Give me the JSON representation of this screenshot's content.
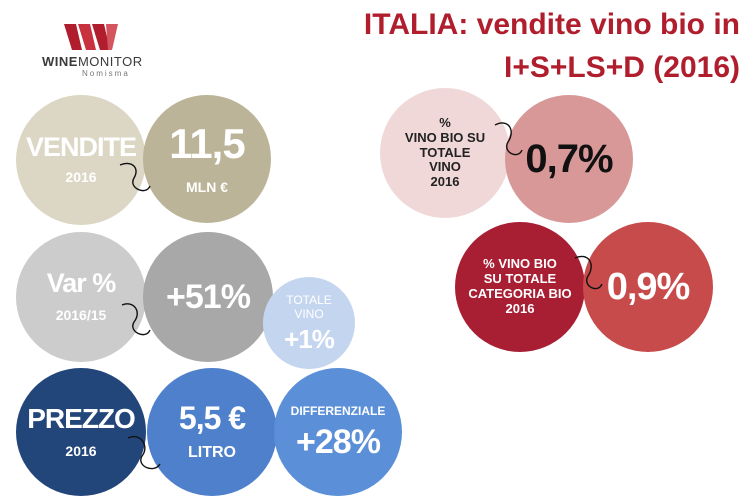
{
  "logo": {
    "brand_bold": "WINE",
    "brand_rest": "MONITOR",
    "sub": "Nomisma"
  },
  "title": {
    "line1": "ITALIA: vendite vino bio in",
    "line2": "I+S+LS+D (2016)"
  },
  "left": {
    "vendite": {
      "label": "VENDITE",
      "year": "2016",
      "value": "11,5",
      "unit": "MLN €"
    },
    "var": {
      "label": "Var %",
      "period": "2016/15",
      "value": "+51%",
      "total_label": "TOTALE VINO",
      "total_value": "+1%"
    },
    "prezzo": {
      "label": "PREZZO",
      "year": "2016",
      "value": "5,5 €",
      "unit": "LITRO",
      "diff_label": "DIFFERENZIALE",
      "diff_value": "+28%"
    }
  },
  "right": {
    "share1": {
      "pct": "%",
      "label1": "VINO BIO SU",
      "label2": "TOTALE",
      "label3": "VINO",
      "year": "2016",
      "value": "0,7%"
    },
    "share2": {
      "label1": "% VINO BIO",
      "label2": "SU TOTALE",
      "label3": "CATEGORIA BIO",
      "year": "2016",
      "value": "0,9%"
    }
  },
  "colors": {
    "beige_light": "#dcd7c5",
    "beige_dark": "#bcb498",
    "grey_light": "#cccccc",
    "grey_dark": "#a8a8a8",
    "blue_pale": "#c4d6ef",
    "navy": "#22467a",
    "blue_mid": "#4e80cc",
    "blue_light": "#5b8fd8",
    "pink_light": "#f0d8d8",
    "rose": "#d99898",
    "crimson": "#a81f34",
    "red": "#c84b4b",
    "title": "#b01e2d"
  }
}
